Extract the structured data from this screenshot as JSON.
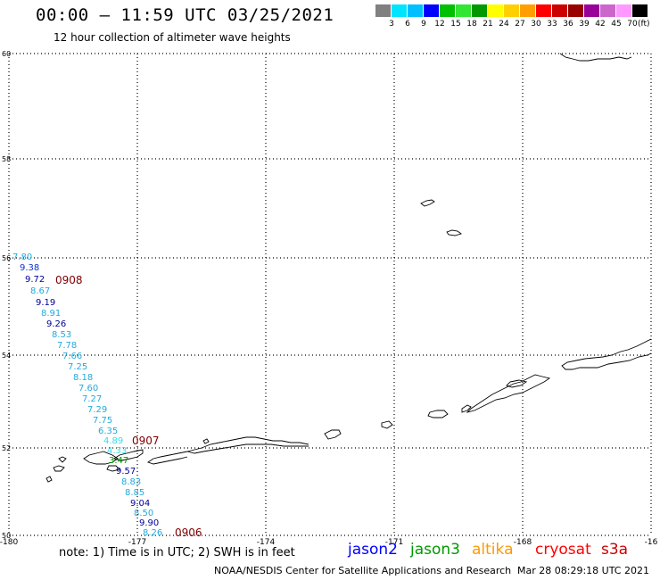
{
  "header": {
    "title": "00:00 – 11:59 UTC 03/25/2021",
    "subtitle": "12 hour collection of altimeter wave heights"
  },
  "color_scale": {
    "unit": "(ft)",
    "bins": [
      {
        "label": "",
        "color": "#808080"
      },
      {
        "label": "3",
        "color": "#00e5ff"
      },
      {
        "label": "6",
        "color": "#00bfff"
      },
      {
        "label": "9",
        "color": "#0000ff"
      },
      {
        "label": "12",
        "color": "#00c000"
      },
      {
        "label": "15",
        "color": "#33e633"
      },
      {
        "label": "18",
        "color": "#009900"
      },
      {
        "label": "21",
        "color": "#ffff00"
      },
      {
        "label": "24",
        "color": "#ffd000"
      },
      {
        "label": "27",
        "color": "#ffa000"
      },
      {
        "label": "30",
        "color": "#ff0000"
      },
      {
        "label": "33",
        "color": "#cc0000"
      },
      {
        "label": "36",
        "color": "#990000"
      },
      {
        "label": "39",
        "color": "#990099"
      },
      {
        "label": "42",
        "color": "#cc66cc"
      },
      {
        "label": "45",
        "color": "#ff99ff"
      },
      {
        "label": "70",
        "color": "#000000"
      }
    ]
  },
  "map": {
    "lat_ticks": [
      "60",
      "58",
      "56",
      "54",
      "52",
      "50"
    ],
    "lon_ticks": [
      "-180",
      "-177",
      "-174",
      "-171",
      "-168",
      "-16"
    ],
    "track_times": [
      "0908",
      "0907",
      "0906"
    ],
    "track_color": "#800000",
    "readings": [
      {
        "v": "7.80",
        "c": "#22aadd"
      },
      {
        "v": "9.38",
        "c": "#1133cc"
      },
      {
        "v": "9.72",
        "c": "#000099"
      },
      {
        "v": "8.67",
        "c": "#22aadd"
      },
      {
        "v": "9.19",
        "c": "#000099"
      },
      {
        "v": "8.91",
        "c": "#22aadd"
      },
      {
        "v": "9.26",
        "c": "#000099"
      },
      {
        "v": "8.53",
        "c": "#22aadd"
      },
      {
        "v": "7.78",
        "c": "#22aadd"
      },
      {
        "v": "7.66",
        "c": "#22aadd"
      },
      {
        "v": "7.25",
        "c": "#22aadd"
      },
      {
        "v": "8.18",
        "c": "#22aadd"
      },
      {
        "v": "7.60",
        "c": "#22aadd"
      },
      {
        "v": "7.27",
        "c": "#22aadd"
      },
      {
        "v": "7.29",
        "c": "#22aadd"
      },
      {
        "v": "7.75",
        "c": "#22aadd"
      },
      {
        "v": "6.35",
        "c": "#22aadd"
      },
      {
        "v": "4.89",
        "c": "#33ddee"
      },
      {
        "v": "4.33",
        "c": "#33ddee"
      },
      {
        "v": "3.47",
        "c": "#009900"
      },
      {
        "v": "9.57",
        "c": "#000099"
      },
      {
        "v": "8.83",
        "c": "#22aadd"
      },
      {
        "v": "8.85",
        "c": "#22aadd"
      },
      {
        "v": "9.04",
        "c": "#000099"
      },
      {
        "v": "8.50",
        "c": "#22aadd"
      },
      {
        "v": "9.90",
        "c": "#000099"
      },
      {
        "v": "8.26",
        "c": "#22aadd"
      }
    ]
  },
  "footer": {
    "note": "note: 1) Time is in UTC; 2) SWH is in feet",
    "satellites": [
      {
        "name": "jason2",
        "color": "#0000ff"
      },
      {
        "name": "jason3",
        "color": "#009900"
      },
      {
        "name": "altika",
        "color": "#ff9900"
      },
      {
        "name": "cryosat",
        "color": "#ff0000"
      },
      {
        "name": "s3a",
        "color": "#cc0000"
      }
    ],
    "credit": "NOAA/NESDIS Center for Satellite Applications and Research",
    "generated": "Mar 28 08:29:18 UTC 2021"
  }
}
